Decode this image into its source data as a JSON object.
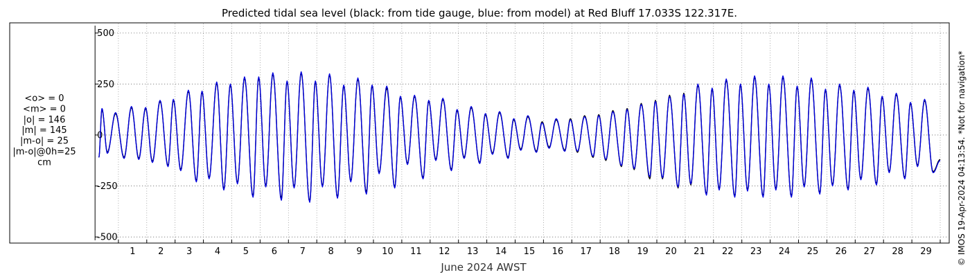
{
  "chart_data": {
    "type": "line",
    "title": "Predicted tidal sea level (black: from tide gauge, blue: from model) at Red Bluff 17.033S 122.317E.",
    "xlabel": "June 2024 AWST",
    "ylabel": "",
    "unit": "cm",
    "xlim": [
      0.2,
      30.0
    ],
    "ylim": [
      -530,
      550
    ],
    "x_ticks": [
      "1",
      "2",
      "3",
      "4",
      "5",
      "6",
      "7",
      "8",
      "9",
      "10",
      "11",
      "12",
      "13",
      "14",
      "15",
      "16",
      "17",
      "18",
      "19",
      "20",
      "21",
      "22",
      "23",
      "24",
      "25",
      "26",
      "27",
      "28",
      "29"
    ],
    "y_ticks": [
      "500",
      "250",
      "0",
      "-250",
      "-500"
    ],
    "grid": true,
    "stats": [
      "<o> = 0",
      "<m> = 0",
      "|o| = 146",
      "|m| = 145",
      "|m-o| = 25",
      "|m-o|@0h=25",
      "cm"
    ],
    "copyright": "© IMOS 19-Apr-2024 04:13:54. *Not for navigation*",
    "series": [
      {
        "name": "from tide gauge",
        "color": "#000000",
        "peaks": [
          [
            0.31,
            -110
          ],
          [
            0.42,
            125
          ],
          [
            0.61,
            -85
          ],
          [
            0.9,
            105
          ],
          [
            1.2,
            -110
          ],
          [
            1.46,
            135
          ],
          [
            1.72,
            -115
          ],
          [
            1.96,
            130
          ],
          [
            2.2,
            -130
          ],
          [
            2.47,
            165
          ],
          [
            2.75,
            -150
          ],
          [
            2.94,
            170
          ],
          [
            3.2,
            -170
          ],
          [
            3.47,
            215
          ],
          [
            3.75,
            -225
          ],
          [
            3.95,
            210
          ],
          [
            4.2,
            -210
          ],
          [
            4.47,
            255
          ],
          [
            4.72,
            -265
          ],
          [
            4.95,
            245
          ],
          [
            5.2,
            -235
          ],
          [
            5.45,
            280
          ],
          [
            5.75,
            -300
          ],
          [
            5.95,
            280
          ],
          [
            6.2,
            -250
          ],
          [
            6.45,
            300
          ],
          [
            6.75,
            -310
          ],
          [
            6.95,
            260
          ],
          [
            7.2,
            -255
          ],
          [
            7.45,
            305
          ],
          [
            7.75,
            -325
          ],
          [
            7.95,
            260
          ],
          [
            8.2,
            -250
          ],
          [
            8.45,
            295
          ],
          [
            8.73,
            -305
          ],
          [
            8.95,
            240
          ],
          [
            9.2,
            -225
          ],
          [
            9.45,
            275
          ],
          [
            9.75,
            -280
          ],
          [
            9.95,
            240
          ],
          [
            10.2,
            -185
          ],
          [
            10.47,
            230
          ],
          [
            10.75,
            -255
          ],
          [
            10.95,
            185
          ],
          [
            11.2,
            -140
          ],
          [
            11.45,
            190
          ],
          [
            11.75,
            -210
          ],
          [
            11.95,
            165
          ],
          [
            12.2,
            -120
          ],
          [
            12.45,
            175
          ],
          [
            12.75,
            -170
          ],
          [
            12.95,
            120
          ],
          [
            13.2,
            -110
          ],
          [
            13.45,
            135
          ],
          [
            13.75,
            -135
          ],
          [
            13.95,
            100
          ],
          [
            14.2,
            -90
          ],
          [
            14.45,
            110
          ],
          [
            14.75,
            -110
          ],
          [
            14.95,
            75
          ],
          [
            15.2,
            -70
          ],
          [
            15.45,
            90
          ],
          [
            15.75,
            -80
          ],
          [
            15.95,
            65
          ],
          [
            16.2,
            -60
          ],
          [
            16.45,
            75
          ],
          [
            16.75,
            -75
          ],
          [
            16.95,
            80
          ],
          [
            17.2,
            -85
          ],
          [
            17.45,
            95
          ],
          [
            17.75,
            -110
          ],
          [
            17.95,
            100
          ],
          [
            18.2,
            -125
          ],
          [
            18.45,
            120
          ],
          [
            18.75,
            -155
          ],
          [
            18.95,
            130
          ],
          [
            19.2,
            -170
          ],
          [
            19.45,
            155
          ],
          [
            19.75,
            -215
          ],
          [
            19.95,
            170
          ],
          [
            20.2,
            -215
          ],
          [
            20.45,
            195
          ],
          [
            20.75,
            -260
          ],
          [
            20.95,
            205
          ],
          [
            21.2,
            -245
          ],
          [
            21.45,
            245
          ],
          [
            21.75,
            -290
          ],
          [
            21.95,
            225
          ],
          [
            22.2,
            -265
          ],
          [
            22.45,
            270
          ],
          [
            22.75,
            -300
          ],
          [
            22.95,
            245
          ],
          [
            23.2,
            -270
          ],
          [
            23.45,
            285
          ],
          [
            23.75,
            -300
          ],
          [
            23.95,
            245
          ],
          [
            24.2,
            -265
          ],
          [
            24.45,
            285
          ],
          [
            24.75,
            -300
          ],
          [
            24.95,
            235
          ],
          [
            25.2,
            -250
          ],
          [
            25.45,
            275
          ],
          [
            25.75,
            -285
          ],
          [
            25.95,
            220
          ],
          [
            26.2,
            -245
          ],
          [
            26.45,
            245
          ],
          [
            26.75,
            -265
          ],
          [
            26.95,
            215
          ],
          [
            27.2,
            -215
          ],
          [
            27.45,
            230
          ],
          [
            27.75,
            -240
          ],
          [
            27.95,
            185
          ],
          [
            28.2,
            -180
          ],
          [
            28.45,
            200
          ],
          [
            28.75,
            -210
          ],
          [
            28.95,
            155
          ],
          [
            29.2,
            -150
          ],
          [
            29.45,
            170
          ],
          [
            29.75,
            -180
          ],
          [
            30.0,
            -120
          ]
        ]
      },
      {
        "name": "from model",
        "color": "#0000dd",
        "peaks": [
          [
            0.31,
            -110
          ],
          [
            0.42,
            130
          ],
          [
            0.61,
            -90
          ],
          [
            0.9,
            110
          ],
          [
            1.2,
            -115
          ],
          [
            1.46,
            140
          ],
          [
            1.72,
            -120
          ],
          [
            1.96,
            135
          ],
          [
            2.2,
            -135
          ],
          [
            2.47,
            170
          ],
          [
            2.75,
            -155
          ],
          [
            2.94,
            175
          ],
          [
            3.2,
            -175
          ],
          [
            3.47,
            220
          ],
          [
            3.75,
            -230
          ],
          [
            3.95,
            215
          ],
          [
            4.2,
            -215
          ],
          [
            4.47,
            260
          ],
          [
            4.72,
            -270
          ],
          [
            4.95,
            250
          ],
          [
            5.2,
            -240
          ],
          [
            5.45,
            285
          ],
          [
            5.75,
            -305
          ],
          [
            5.95,
            285
          ],
          [
            6.2,
            -255
          ],
          [
            6.45,
            305
          ],
          [
            6.75,
            -320
          ],
          [
            6.95,
            265
          ],
          [
            7.2,
            -260
          ],
          [
            7.45,
            310
          ],
          [
            7.75,
            -330
          ],
          [
            7.95,
            265
          ],
          [
            8.2,
            -255
          ],
          [
            8.45,
            300
          ],
          [
            8.73,
            -310
          ],
          [
            8.95,
            245
          ],
          [
            9.2,
            -230
          ],
          [
            9.45,
            280
          ],
          [
            9.75,
            -290
          ],
          [
            9.95,
            245
          ],
          [
            10.2,
            -190
          ],
          [
            10.47,
            240
          ],
          [
            10.75,
            -260
          ],
          [
            10.95,
            190
          ],
          [
            11.2,
            -145
          ],
          [
            11.45,
            195
          ],
          [
            11.75,
            -215
          ],
          [
            11.95,
            170
          ],
          [
            12.2,
            -125
          ],
          [
            12.45,
            180
          ],
          [
            12.75,
            -175
          ],
          [
            12.95,
            125
          ],
          [
            13.2,
            -115
          ],
          [
            13.45,
            140
          ],
          [
            13.75,
            -140
          ],
          [
            13.95,
            105
          ],
          [
            14.2,
            -95
          ],
          [
            14.45,
            115
          ],
          [
            14.75,
            -115
          ],
          [
            14.95,
            80
          ],
          [
            15.2,
            -75
          ],
          [
            15.45,
            95
          ],
          [
            15.75,
            -85
          ],
          [
            15.95,
            60
          ],
          [
            16.2,
            -65
          ],
          [
            16.45,
            80
          ],
          [
            16.75,
            -80
          ],
          [
            16.95,
            75
          ],
          [
            17.2,
            -80
          ],
          [
            17.45,
            90
          ],
          [
            17.75,
            -105
          ],
          [
            17.95,
            95
          ],
          [
            18.2,
            -120
          ],
          [
            18.45,
            115
          ],
          [
            18.75,
            -150
          ],
          [
            18.95,
            125
          ],
          [
            19.2,
            -165
          ],
          [
            19.45,
            150
          ],
          [
            19.75,
            -205
          ],
          [
            19.95,
            165
          ],
          [
            20.2,
            -210
          ],
          [
            20.45,
            190
          ],
          [
            20.75,
            -255
          ],
          [
            20.95,
            200
          ],
          [
            21.2,
            -240
          ],
          [
            21.45,
            250
          ],
          [
            21.75,
            -295
          ],
          [
            21.95,
            230
          ],
          [
            22.2,
            -270
          ],
          [
            22.45,
            275
          ],
          [
            22.75,
            -305
          ],
          [
            22.95,
            250
          ],
          [
            23.2,
            -275
          ],
          [
            23.45,
            290
          ],
          [
            23.75,
            -305
          ],
          [
            23.95,
            250
          ],
          [
            24.2,
            -270
          ],
          [
            24.45,
            290
          ],
          [
            24.75,
            -305
          ],
          [
            24.95,
            240
          ],
          [
            25.2,
            -255
          ],
          [
            25.45,
            280
          ],
          [
            25.75,
            -290
          ],
          [
            25.95,
            225
          ],
          [
            26.2,
            -250
          ],
          [
            26.45,
            250
          ],
          [
            26.75,
            -270
          ],
          [
            26.95,
            220
          ],
          [
            27.2,
            -220
          ],
          [
            27.45,
            235
          ],
          [
            27.75,
            -245
          ],
          [
            27.95,
            190
          ],
          [
            28.2,
            -185
          ],
          [
            28.45,
            205
          ],
          [
            28.75,
            -215
          ],
          [
            28.95,
            160
          ],
          [
            29.2,
            -155
          ],
          [
            29.45,
            175
          ],
          [
            29.75,
            -185
          ],
          [
            30.0,
            -125
          ]
        ]
      }
    ]
  }
}
